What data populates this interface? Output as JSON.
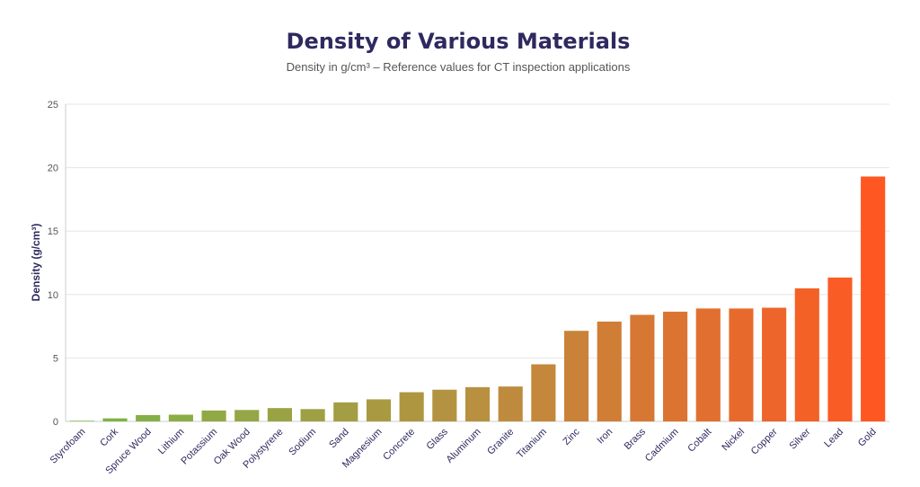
{
  "chart_data": {
    "type": "bar",
    "title": "Density of Various Materials",
    "subtitle": "Density in g/cm³ – Reference values for CT inspection applications",
    "ylabel": "Density (g/cm³)",
    "xlabel": "",
    "ylim": [
      0,
      25
    ],
    "yticks": [
      0,
      5,
      10,
      15,
      20,
      25
    ],
    "grid": true,
    "legend": "none",
    "categories": [
      "Styrofoam",
      "Cork",
      "Spruce Wood",
      "Lithium",
      "Potassium",
      "Oak Wood",
      "Polystyrene",
      "Sodium",
      "Sand",
      "Magnesium",
      "Concrete",
      "Glass",
      "Aluminum",
      "Granite",
      "Titanium",
      "Zinc",
      "Iron",
      "Brass",
      "Cadmium",
      "Cobalt",
      "Nickel",
      "Copper",
      "Silver",
      "Lead",
      "Gold"
    ],
    "values": [
      0.05,
      0.24,
      0.5,
      0.53,
      0.86,
      0.9,
      1.05,
      0.97,
      1.5,
      1.74,
      2.3,
      2.5,
      2.7,
      2.75,
      4.5,
      7.14,
      7.87,
      8.4,
      8.65,
      8.9,
      8.9,
      8.96,
      10.49,
      11.34,
      19.3
    ],
    "colors": {
      "low": "#7ab648",
      "mid": "#b89040",
      "high": "#ff5722",
      "grid": "#e6e6e6",
      "axis": "#cccccc"
    }
  }
}
